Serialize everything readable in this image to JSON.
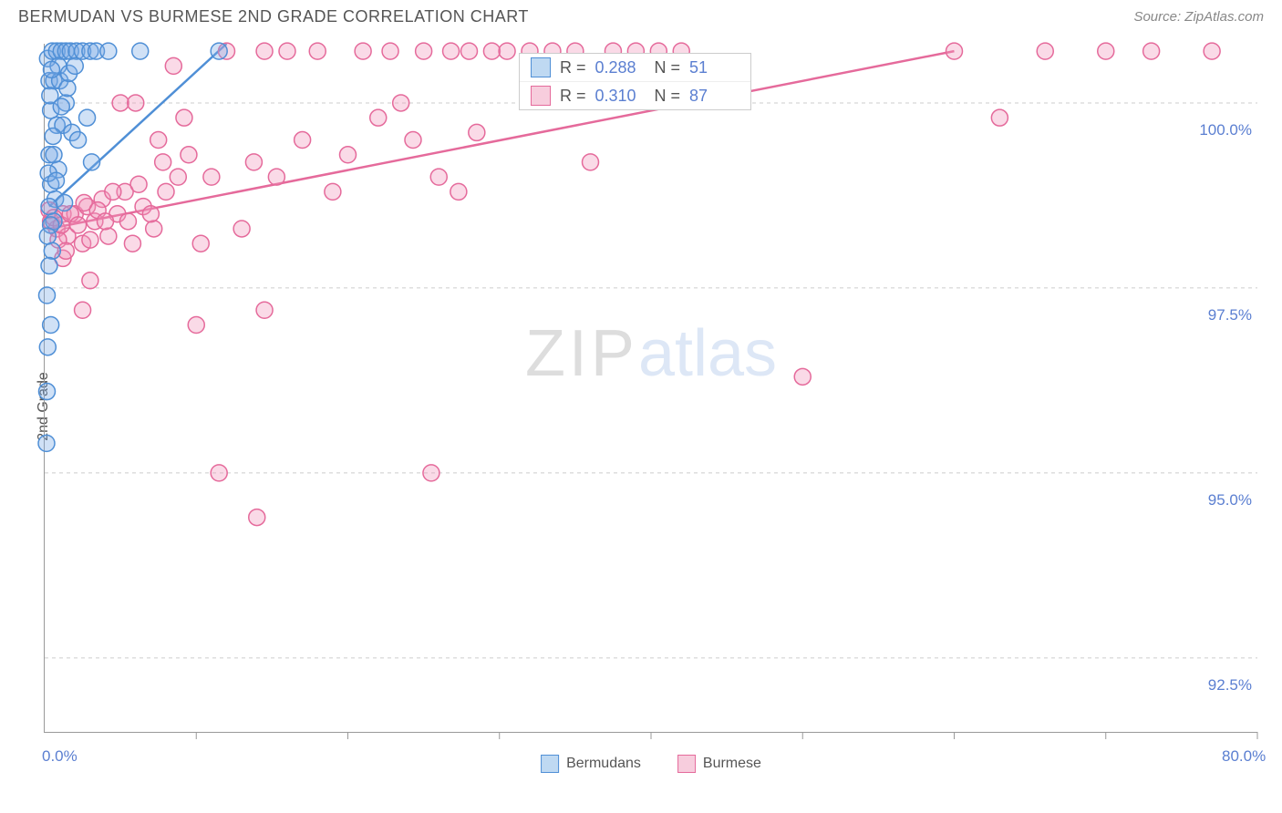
{
  "title": "BERMUDAN VS BURMESE 2ND GRADE CORRELATION CHART",
  "source": "Source: ZipAtlas.com",
  "ylabel": "2nd Grade",
  "chart": {
    "type": "scatter",
    "xlim": [
      0,
      80
    ],
    "ylim": [
      91.5,
      100.8
    ],
    "x_min_label": "0.0%",
    "x_max_label": "80.0%",
    "yticks": [
      92.5,
      95.0,
      97.5,
      100.0
    ],
    "ytick_labels": [
      "92.5%",
      "95.0%",
      "97.5%",
      "100.0%"
    ],
    "xticks": [
      0,
      10,
      20,
      30,
      40,
      50,
      60,
      70,
      80
    ],
    "grid_color": "#cccccc",
    "background_color": "#ffffff",
    "axis_color": "#999999",
    "marker_radius": 9,
    "marker_stroke_width": 1.5,
    "line_width": 2.5,
    "series": [
      {
        "name": "Bermudans",
        "fill": "rgba(120,170,230,0.35)",
        "stroke": "#4f8fd6",
        "swatch_fill": "#bfd9f2",
        "swatch_stroke": "#4f8fd6",
        "R": "0.288",
        "N": "51",
        "line": {
          "x1": 0.3,
          "y1": 98.6,
          "x2": 12,
          "y2": 100.8
        },
        "points": [
          [
            0.2,
            100.6
          ],
          [
            0.5,
            100.7
          ],
          [
            0.8,
            100.7
          ],
          [
            1.1,
            100.7
          ],
          [
            1.4,
            100.7
          ],
          [
            1.7,
            100.7
          ],
          [
            2.1,
            100.7
          ],
          [
            2.5,
            100.7
          ],
          [
            3.0,
            100.7
          ],
          [
            3.4,
            100.7
          ],
          [
            4.2,
            100.7
          ],
          [
            6.3,
            100.7
          ],
          [
            11.5,
            100.7
          ],
          [
            0.3,
            100.3
          ],
          [
            0.6,
            100.3
          ],
          [
            1.0,
            100.3
          ],
          [
            1.4,
            100.0
          ],
          [
            0.4,
            99.9
          ],
          [
            0.8,
            99.7
          ],
          [
            1.2,
            99.7
          ],
          [
            1.5,
            100.2
          ],
          [
            0.3,
            99.3
          ],
          [
            0.6,
            99.3
          ],
          [
            0.9,
            99.1
          ],
          [
            0.4,
            98.9
          ],
          [
            0.7,
            98.7
          ],
          [
            0.3,
            98.6
          ],
          [
            0.6,
            98.4
          ],
          [
            0.4,
            98.35
          ],
          [
            0.2,
            98.2
          ],
          [
            0.5,
            98.0
          ],
          [
            0.3,
            97.8
          ],
          [
            0.15,
            97.4
          ],
          [
            0.4,
            97.0
          ],
          [
            0.2,
            96.7
          ],
          [
            0.15,
            96.1
          ],
          [
            0.12,
            95.4
          ],
          [
            1.8,
            99.6
          ],
          [
            2.2,
            99.5
          ],
          [
            2.8,
            99.8
          ],
          [
            3.1,
            99.2
          ],
          [
            0.9,
            100.5
          ],
          [
            1.6,
            100.4
          ],
          [
            0.35,
            100.1
          ],
          [
            0.55,
            99.55
          ],
          [
            1.3,
            98.65
          ],
          [
            0.25,
            99.05
          ],
          [
            0.45,
            100.45
          ],
          [
            0.75,
            98.95
          ],
          [
            1.1,
            99.95
          ],
          [
            2.0,
            100.5
          ]
        ]
      },
      {
        "name": "Burmese",
        "fill": "rgba(240,150,185,0.35)",
        "stroke": "#e56a9b",
        "swatch_fill": "#f7cddd",
        "swatch_stroke": "#e56a9b",
        "R": "0.310",
        "N": "87",
        "line": {
          "x1": 0.3,
          "y1": 98.3,
          "x2": 60,
          "y2": 100.7
        },
        "points": [
          [
            0.4,
            98.4
          ],
          [
            0.8,
            98.3
          ],
          [
            1.2,
            98.5
          ],
          [
            1.5,
            98.2
          ],
          [
            2.0,
            98.5
          ],
          [
            2.5,
            98.1
          ],
          [
            2.8,
            98.6
          ],
          [
            3.3,
            98.4
          ],
          [
            3.8,
            98.7
          ],
          [
            4.2,
            98.2
          ],
          [
            4.8,
            98.5
          ],
          [
            5.3,
            98.8
          ],
          [
            5.8,
            98.1
          ],
          [
            6.5,
            98.6
          ],
          [
            7.2,
            98.3
          ],
          [
            8.0,
            98.8
          ],
          [
            8.8,
            99.0
          ],
          [
            9.5,
            99.3
          ],
          [
            10.3,
            98.1
          ],
          [
            5.0,
            100.0
          ],
          [
            6.0,
            100.0
          ],
          [
            7.5,
            99.5
          ],
          [
            8.5,
            100.5
          ],
          [
            9.2,
            99.8
          ],
          [
            11.0,
            99.0
          ],
          [
            12.0,
            100.7
          ],
          [
            13.0,
            98.3
          ],
          [
            13.8,
            99.2
          ],
          [
            14.5,
            100.7
          ],
          [
            15.3,
            99.0
          ],
          [
            16.0,
            100.7
          ],
          [
            17.0,
            99.5
          ],
          [
            18.0,
            100.7
          ],
          [
            19.0,
            98.8
          ],
          [
            20.0,
            99.3
          ],
          [
            21.0,
            100.7
          ],
          [
            22.0,
            99.8
          ],
          [
            22.8,
            100.7
          ],
          [
            23.5,
            100.0
          ],
          [
            24.3,
            99.5
          ],
          [
            25.0,
            100.7
          ],
          [
            25.5,
            95.0
          ],
          [
            26.0,
            99.0
          ],
          [
            26.8,
            100.7
          ],
          [
            27.3,
            98.8
          ],
          [
            28.0,
            100.7
          ],
          [
            28.5,
            99.6
          ],
          [
            29.5,
            100.7
          ],
          [
            30.5,
            100.7
          ],
          [
            14.5,
            97.2
          ],
          [
            14.0,
            94.4
          ],
          [
            11.5,
            95.0
          ],
          [
            10.0,
            97.0
          ],
          [
            2.5,
            97.2
          ],
          [
            3.0,
            97.6
          ],
          [
            1.2,
            97.9
          ],
          [
            32.0,
            100.7
          ],
          [
            33.5,
            100.7
          ],
          [
            35.0,
            100.7
          ],
          [
            36.0,
            99.2
          ],
          [
            37.5,
            100.7
          ],
          [
            39.0,
            100.7
          ],
          [
            40.5,
            100.7
          ],
          [
            42.0,
            100.7
          ],
          [
            50.0,
            96.3
          ],
          [
            60.0,
            100.7
          ],
          [
            63.0,
            99.8
          ],
          [
            66.0,
            100.7
          ],
          [
            70.0,
            100.7
          ],
          [
            73.0,
            100.7
          ],
          [
            77.0,
            100.7
          ],
          [
            0.3,
            98.55
          ],
          [
            0.6,
            98.45
          ],
          [
            0.9,
            98.15
          ],
          [
            1.1,
            98.35
          ],
          [
            1.4,
            98.0
          ],
          [
            1.7,
            98.5
          ],
          [
            2.2,
            98.35
          ],
          [
            2.6,
            98.65
          ],
          [
            3.0,
            98.15
          ],
          [
            3.5,
            98.55
          ],
          [
            4.0,
            98.4
          ],
          [
            4.5,
            98.8
          ],
          [
            5.5,
            98.4
          ],
          [
            6.2,
            98.9
          ],
          [
            7.0,
            98.5
          ],
          [
            7.8,
            99.2
          ]
        ]
      }
    ]
  },
  "legend_labels": {
    "s1": "Bermudans",
    "s2": "Burmese"
  },
  "watermark": {
    "zip": "ZIP",
    "atlas": "atlas"
  }
}
